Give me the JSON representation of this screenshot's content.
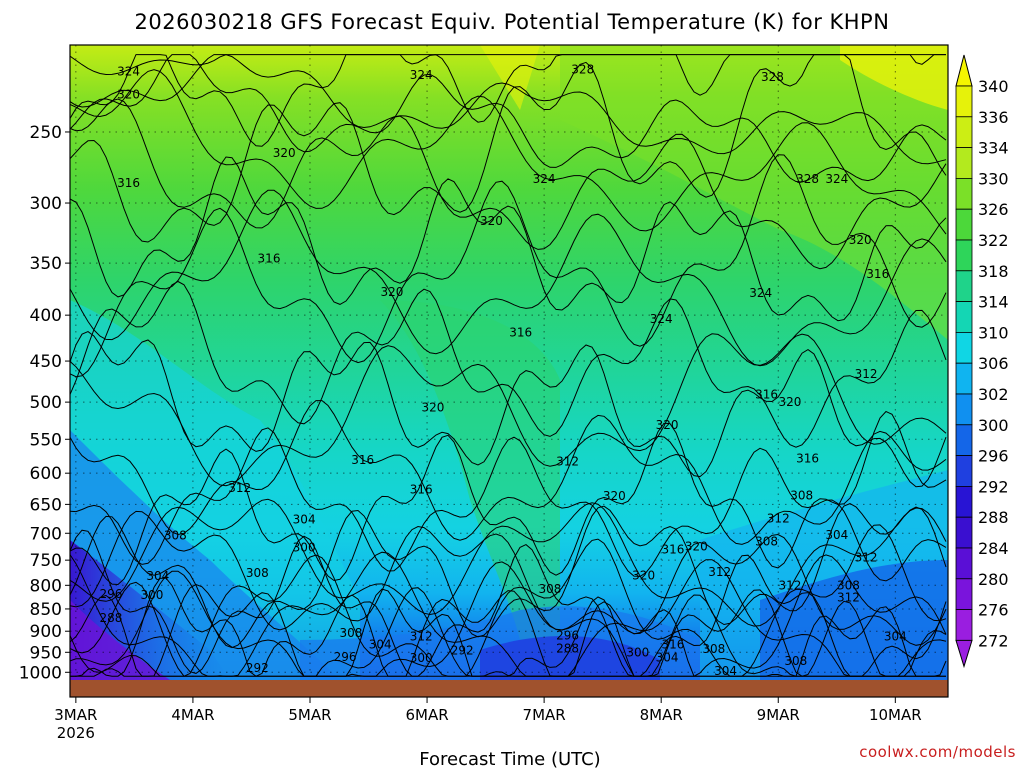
{
  "chart_data": {
    "type": "heatmap",
    "title": "2026030218 GFS Forecast Equiv. Potential Temperature (K) for KHPN",
    "xlabel": "Forecast Time (UTC)",
    "ylabel": "",
    "credit": "coolwx.com/models",
    "pressure_ticks": [
      250,
      300,
      350,
      400,
      450,
      500,
      550,
      600,
      650,
      700,
      750,
      800,
      850,
      900,
      950,
      1000
    ],
    "pressure_range": [
      200,
      1020
    ],
    "x_ticks": [
      {
        "label": "3MAR",
        "sub": "2026",
        "day": 0
      },
      {
        "label": "4MAR",
        "sub": "",
        "day": 1
      },
      {
        "label": "5MAR",
        "sub": "",
        "day": 2
      },
      {
        "label": "6MAR",
        "sub": "",
        "day": 3
      },
      {
        "label": "7MAR",
        "sub": "",
        "day": 4
      },
      {
        "label": "8MAR",
        "sub": "",
        "day": 5
      },
      {
        "label": "9MAR",
        "sub": "",
        "day": 6
      },
      {
        "label": "10MAR",
        "sub": "",
        "day": 7
      }
    ],
    "x_range_days": [
      -0.05,
      7.45
    ],
    "colorbar": {
      "levels": [
        340,
        336,
        334,
        330,
        326,
        322,
        318,
        314,
        310,
        306,
        302,
        300,
        296,
        292,
        288,
        284,
        280,
        276,
        272
      ],
      "colors": [
        "#f5f500",
        "#e6f20a",
        "#ccee14",
        "#b3ea1e",
        "#7be028",
        "#4cd83a",
        "#2ed55a",
        "#1fd38a",
        "#14d6b4",
        "#10d6e4",
        "#10b4f0",
        "#1090f0",
        "#1466e8",
        "#1f40e0",
        "#2814d4",
        "#3a0fd0",
        "#5a0fd6",
        "#7a14dc",
        "#9a1ee0"
      ]
    },
    "contour_labels": [
      {
        "text": "324",
        "day": 0.45,
        "p": 214
      },
      {
        "text": "320",
        "day": 0.45,
        "p": 227
      },
      {
        "text": "316",
        "day": 0.45,
        "p": 285
      },
      {
        "text": "320",
        "day": 1.78,
        "p": 264
      },
      {
        "text": "324",
        "day": 2.95,
        "p": 216
      },
      {
        "text": "328",
        "day": 4.33,
        "p": 213
      },
      {
        "text": "328",
        "day": 5.95,
        "p": 217
      },
      {
        "text": "324",
        "day": 4.0,
        "p": 282
      },
      {
        "text": "320",
        "day": 3.55,
        "p": 314
      },
      {
        "text": "316",
        "day": 1.65,
        "p": 346
      },
      {
        "text": "320",
        "day": 2.7,
        "p": 377
      },
      {
        "text": "316",
        "day": 3.8,
        "p": 418
      },
      {
        "text": "324",
        "day": 5.0,
        "p": 404
      },
      {
        "text": "328",
        "day": 6.25,
        "p": 282
      },
      {
        "text": "324",
        "day": 6.5,
        "p": 282
      },
      {
        "text": "320",
        "day": 6.7,
        "p": 330
      },
      {
        "text": "316",
        "day": 6.85,
        "p": 360
      },
      {
        "text": "324",
        "day": 5.85,
        "p": 378
      },
      {
        "text": "312",
        "day": 6.75,
        "p": 465
      },
      {
        "text": "316",
        "day": 5.9,
        "p": 490
      },
      {
        "text": "320",
        "day": 6.1,
        "p": 500
      },
      {
        "text": "320",
        "day": 3.05,
        "p": 507
      },
      {
        "text": "320",
        "day": 5.05,
        "p": 530
      },
      {
        "text": "316",
        "day": 2.45,
        "p": 580
      },
      {
        "text": "312",
        "day": 4.2,
        "p": 582
      },
      {
        "text": "316",
        "day": 6.25,
        "p": 578
      },
      {
        "text": "312",
        "day": 1.4,
        "p": 623
      },
      {
        "text": "316",
        "day": 2.95,
        "p": 626
      },
      {
        "text": "320",
        "day": 4.6,
        "p": 636
      },
      {
        "text": "308",
        "day": 6.2,
        "p": 635
      },
      {
        "text": "304",
        "day": 1.95,
        "p": 676
      },
      {
        "text": "312",
        "day": 6.0,
        "p": 674
      },
      {
        "text": "308",
        "day": 0.85,
        "p": 704
      },
      {
        "text": "300",
        "day": 1.95,
        "p": 726
      },
      {
        "text": "308",
        "day": 5.9,
        "p": 715
      },
      {
        "text": "304",
        "day": 6.5,
        "p": 703
      },
      {
        "text": "316",
        "day": 5.1,
        "p": 730
      },
      {
        "text": "320",
        "day": 5.3,
        "p": 724
      },
      {
        "text": "312",
        "day": 6.75,
        "p": 745
      },
      {
        "text": "308",
        "day": 1.55,
        "p": 775
      },
      {
        "text": "312",
        "day": 5.5,
        "p": 773
      },
      {
        "text": "320",
        "day": 4.85,
        "p": 780
      },
      {
        "text": "304",
        "day": 0.7,
        "p": 781
      },
      {
        "text": "296",
        "day": 0.3,
        "p": 818
      },
      {
        "text": "300",
        "day": 0.65,
        "p": 820
      },
      {
        "text": "312",
        "day": 6.1,
        "p": 800
      },
      {
        "text": "308",
        "day": 6.6,
        "p": 800
      },
      {
        "text": "308",
        "day": 4.05,
        "p": 808
      },
      {
        "text": "312",
        "day": 6.6,
        "p": 825
      },
      {
        "text": "288",
        "day": 0.3,
        "p": 870
      },
      {
        "text": "308",
        "day": 2.35,
        "p": 904
      },
      {
        "text": "312",
        "day": 2.95,
        "p": 912
      },
      {
        "text": "296",
        "day": 4.2,
        "p": 910
      },
      {
        "text": "304",
        "day": 2.6,
        "p": 931
      },
      {
        "text": "316",
        "day": 5.1,
        "p": 931
      },
      {
        "text": "304",
        "day": 7.0,
        "p": 912
      },
      {
        "text": "288",
        "day": 4.2,
        "p": 941
      },
      {
        "text": "292",
        "day": 3.3,
        "p": 946
      },
      {
        "text": "300",
        "day": 4.8,
        "p": 950
      },
      {
        "text": "308",
        "day": 5.45,
        "p": 942
      },
      {
        "text": "296",
        "day": 2.3,
        "p": 962
      },
      {
        "text": "300",
        "day": 2.95,
        "p": 964
      },
      {
        "text": "304",
        "day": 5.05,
        "p": 963
      },
      {
        "text": "308",
        "day": 6.15,
        "p": 971
      },
      {
        "text": "292",
        "day": 1.55,
        "p": 989
      },
      {
        "text": "304",
        "day": 5.55,
        "p": 997
      }
    ]
  }
}
